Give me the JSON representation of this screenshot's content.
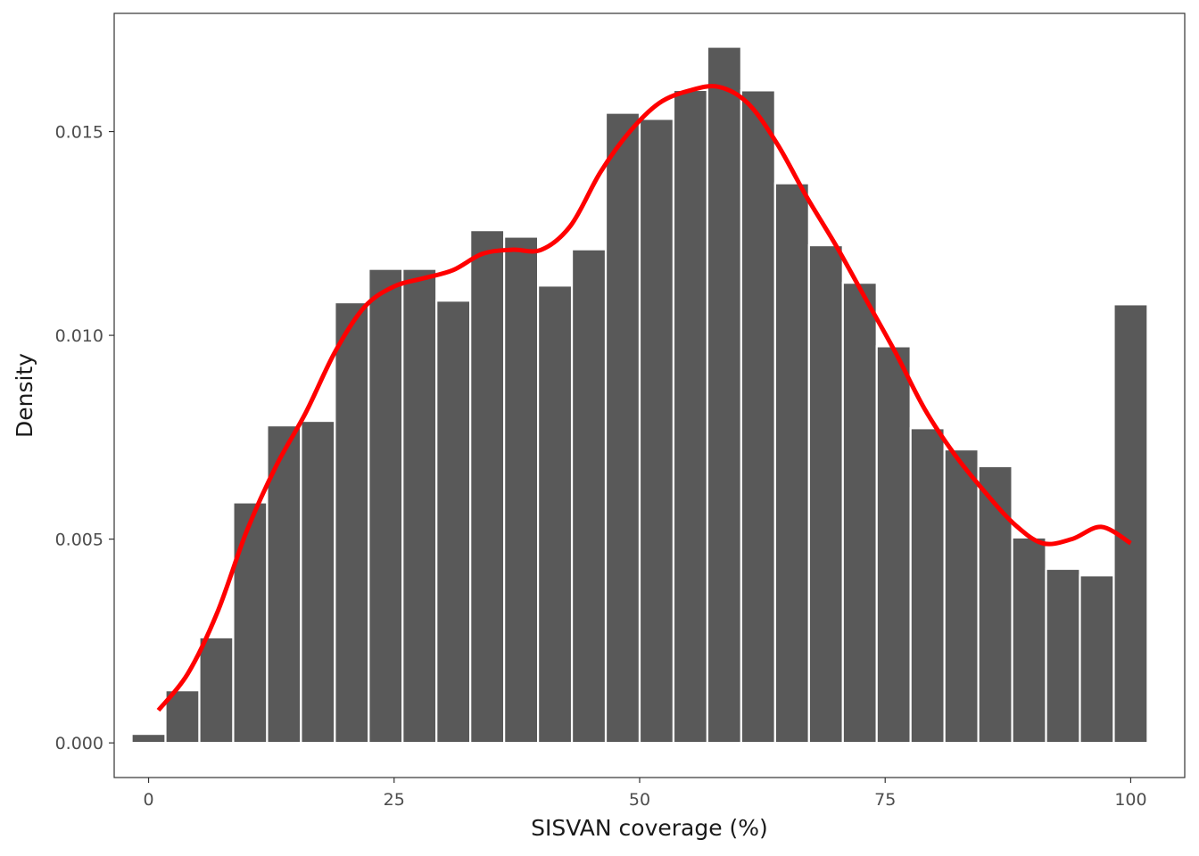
{
  "chart_data": {
    "type": "bar",
    "title": "",
    "xlabel": "SISVAN coverage (%)",
    "ylabel": "Density",
    "xlim": [
      -3.5,
      105.5
    ],
    "ylim": [
      -0.00085,
      0.0179
    ],
    "x_ticks": [
      {
        "value": 0,
        "label": "0"
      },
      {
        "value": 25,
        "label": "25"
      },
      {
        "value": 50,
        "label": "50"
      },
      {
        "value": 75,
        "label": "75"
      },
      {
        "value": 100,
        "label": "100"
      }
    ],
    "y_ticks": [
      {
        "value": 0,
        "label": "0.000"
      },
      {
        "value": 0.005,
        "label": "0.005"
      },
      {
        "value": 0.01,
        "label": "0.010"
      },
      {
        "value": 0.015,
        "label": "0.015"
      }
    ],
    "grid": false,
    "bar_color": "#595959",
    "bar_outline_color": "#ffffff",
    "density_color": "#ff0000",
    "bin_width": 3.448,
    "bin_centers": [
      0,
      3.448,
      6.897,
      10.345,
      13.793,
      17.241,
      20.69,
      24.138,
      27.586,
      31.034,
      34.483,
      37.931,
      41.379,
      44.828,
      48.276,
      51.724,
      55.172,
      58.621,
      62.069,
      65.517,
      68.966,
      72.414,
      75.862,
      79.31,
      82.759,
      86.207,
      89.655,
      93.103,
      96.552,
      100
    ],
    "values": [
      0.00022,
      0.00129,
      0.00259,
      0.0059,
      0.00779,
      0.0079,
      0.01081,
      0.01163,
      0.01163,
      0.01085,
      0.01258,
      0.01242,
      0.01122,
      0.01211,
      0.01546,
      0.01531,
      0.01602,
      0.01708,
      0.01601,
      0.01373,
      0.01221,
      0.01129,
      0.00973,
      0.00772,
      0.0072,
      0.00679,
      0.00504,
      0.00427,
      0.00411,
      0.01076
    ],
    "density_x": [
      1,
      4,
      7,
      10,
      13,
      16,
      19,
      22,
      25,
      28,
      31,
      34,
      37,
      40,
      43,
      46,
      49,
      52,
      55,
      58,
      61,
      64,
      67,
      70,
      73,
      76,
      79,
      82,
      85,
      88,
      91,
      94,
      97,
      100
    ],
    "density_y": [
      0.0008,
      0.0017,
      0.0032,
      0.0052,
      0.0068,
      0.0081,
      0.0096,
      0.0107,
      0.0112,
      0.0114,
      0.0116,
      0.012,
      0.0121,
      0.0121,
      0.0127,
      0.014,
      0.015,
      0.0157,
      0.016,
      0.0161,
      0.0157,
      0.0147,
      0.0134,
      0.0122,
      0.0109,
      0.0096,
      0.0082,
      0.0071,
      0.0062,
      0.0054,
      0.0049,
      0.005,
      0.0053,
      0.0049
    ]
  }
}
